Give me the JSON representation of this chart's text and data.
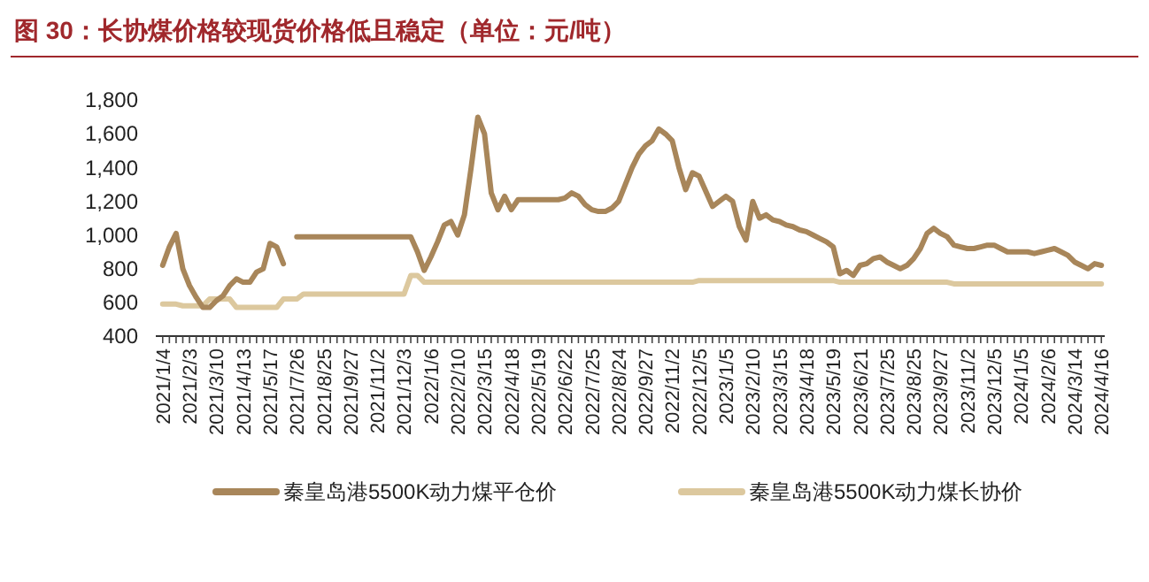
{
  "chart_data": {
    "type": "line",
    "title": "图 30：长协煤价格较现货价格低且稳定（单位：元/吨）",
    "categories": [
      "2021/1/4",
      null,
      null,
      null,
      "2021/2/3",
      null,
      null,
      null,
      "2021/3/10",
      null,
      null,
      null,
      "2021/4/13",
      null,
      null,
      null,
      "2021/5/17",
      null,
      null,
      null,
      "2021/7/26",
      null,
      null,
      null,
      "2021/8/25",
      null,
      null,
      null,
      "2021/9/27",
      null,
      null,
      null,
      "2021/11/2",
      null,
      null,
      null,
      "2021/12/3",
      null,
      null,
      null,
      "2022/1/6",
      null,
      null,
      null,
      "2022/2/10",
      null,
      null,
      null,
      "2022/3/15",
      null,
      null,
      null,
      "2022/4/18",
      null,
      null,
      null,
      "2022/5/19",
      null,
      null,
      null,
      "2022/6/22",
      null,
      null,
      null,
      "2022/7/25",
      null,
      null,
      null,
      "2022/8/24",
      null,
      null,
      null,
      "2022/9/27",
      null,
      null,
      null,
      "2022/11/2",
      null,
      null,
      null,
      "2022/12/5",
      null,
      null,
      null,
      "2023/1/5",
      null,
      null,
      null,
      "2023/2/10",
      null,
      null,
      null,
      "2023/3/15",
      null,
      null,
      null,
      "2023/4/18",
      null,
      null,
      null,
      "2023/5/19",
      null,
      null,
      null,
      "2023/6/21",
      null,
      null,
      null,
      "2023/7/25",
      null,
      null,
      null,
      "2023/8/25",
      null,
      null,
      null,
      "2023/9/27",
      null,
      null,
      null,
      "2023/11/2",
      null,
      null,
      null,
      "2023/12/5",
      null,
      null,
      null,
      "2024/1/5",
      null,
      null,
      null,
      "2024/2/6",
      null,
      null,
      null,
      "2024/3/14",
      null,
      null,
      null,
      "2024/4/16"
    ],
    "series": [
      {
        "name": "秦皇岛港5500K动力煤平仓价",
        "color": "#a8865a",
        "values": [
          820,
          930,
          1010,
          800,
          700,
          630,
          570,
          570,
          610,
          640,
          700,
          740,
          720,
          720,
          780,
          800,
          950,
          930,
          830,
          null,
          990,
          990,
          990,
          990,
          990,
          990,
          990,
          990,
          990,
          990,
          990,
          990,
          990,
          990,
          990,
          990,
          990,
          990,
          900,
          790,
          870,
          960,
          1060,
          1080,
          1000,
          1120,
          1400,
          1700,
          1600,
          1250,
          1150,
          1230,
          1150,
          1210,
          1210,
          1210,
          1210,
          1210,
          1210,
          1210,
          1220,
          1250,
          1230,
          1180,
          1150,
          1140,
          1140,
          1160,
          1200,
          1300,
          1400,
          1480,
          1530,
          1560,
          1630,
          1600,
          1560,
          1400,
          1270,
          1370,
          1350,
          1260,
          1170,
          1200,
          1230,
          1200,
          1050,
          970,
          1200,
          1100,
          1120,
          1090,
          1080,
          1060,
          1050,
          1030,
          1020,
          1000,
          980,
          960,
          930,
          770,
          790,
          760,
          820,
          830,
          860,
          870,
          840,
          820,
          800,
          820,
          860,
          920,
          1010,
          1040,
          1010,
          990,
          940,
          930,
          920,
          920,
          930,
          940,
          940,
          920,
          900,
          900,
          900,
          900,
          890,
          900,
          910,
          920,
          900,
          880,
          840,
          820,
          800,
          830,
          820
        ]
      },
      {
        "name": "秦皇岛港5500K动力煤长协价",
        "color": "#dcc89e",
        "values": [
          590,
          590,
          590,
          580,
          580,
          580,
          580,
          620,
          620,
          620,
          620,
          570,
          570,
          570,
          570,
          570,
          570,
          570,
          620,
          620,
          620,
          650,
          650,
          650,
          650,
          650,
          650,
          650,
          650,
          650,
          650,
          650,
          650,
          650,
          650,
          650,
          650,
          760,
          760,
          720,
          720,
          720,
          720,
          720,
          720,
          720,
          720,
          720,
          720,
          720,
          720,
          720,
          720,
          720,
          720,
          720,
          720,
          720,
          720,
          720,
          720,
          720,
          720,
          720,
          720,
          720,
          720,
          720,
          720,
          720,
          720,
          720,
          720,
          720,
          720,
          720,
          720,
          720,
          720,
          720,
          730,
          730,
          730,
          730,
          730,
          730,
          730,
          730,
          730,
          730,
          730,
          730,
          730,
          730,
          730,
          730,
          730,
          730,
          730,
          730,
          730,
          720,
          720,
          720,
          720,
          720,
          720,
          720,
          720,
          720,
          720,
          720,
          720,
          720,
          720,
          720,
          720,
          720,
          710,
          710,
          710,
          710,
          710,
          710,
          710,
          710,
          710,
          710,
          710,
          710,
          710,
          710,
          710,
          710,
          710,
          710,
          710,
          710,
          710,
          710,
          710
        ]
      }
    ],
    "ylim": [
      400,
      1800
    ],
    "yticks": [
      {
        "value": 400,
        "label": "400"
      },
      {
        "value": 600,
        "label": "600"
      },
      {
        "value": 800,
        "label": "800"
      },
      {
        "value": 1000,
        "label": "1,000"
      },
      {
        "value": 1200,
        "label": "1,200"
      },
      {
        "value": 1400,
        "label": "1,400"
      },
      {
        "value": 1600,
        "label": "1,600"
      },
      {
        "value": 1800,
        "label": "1,800"
      }
    ],
    "legend": "bottom"
  }
}
